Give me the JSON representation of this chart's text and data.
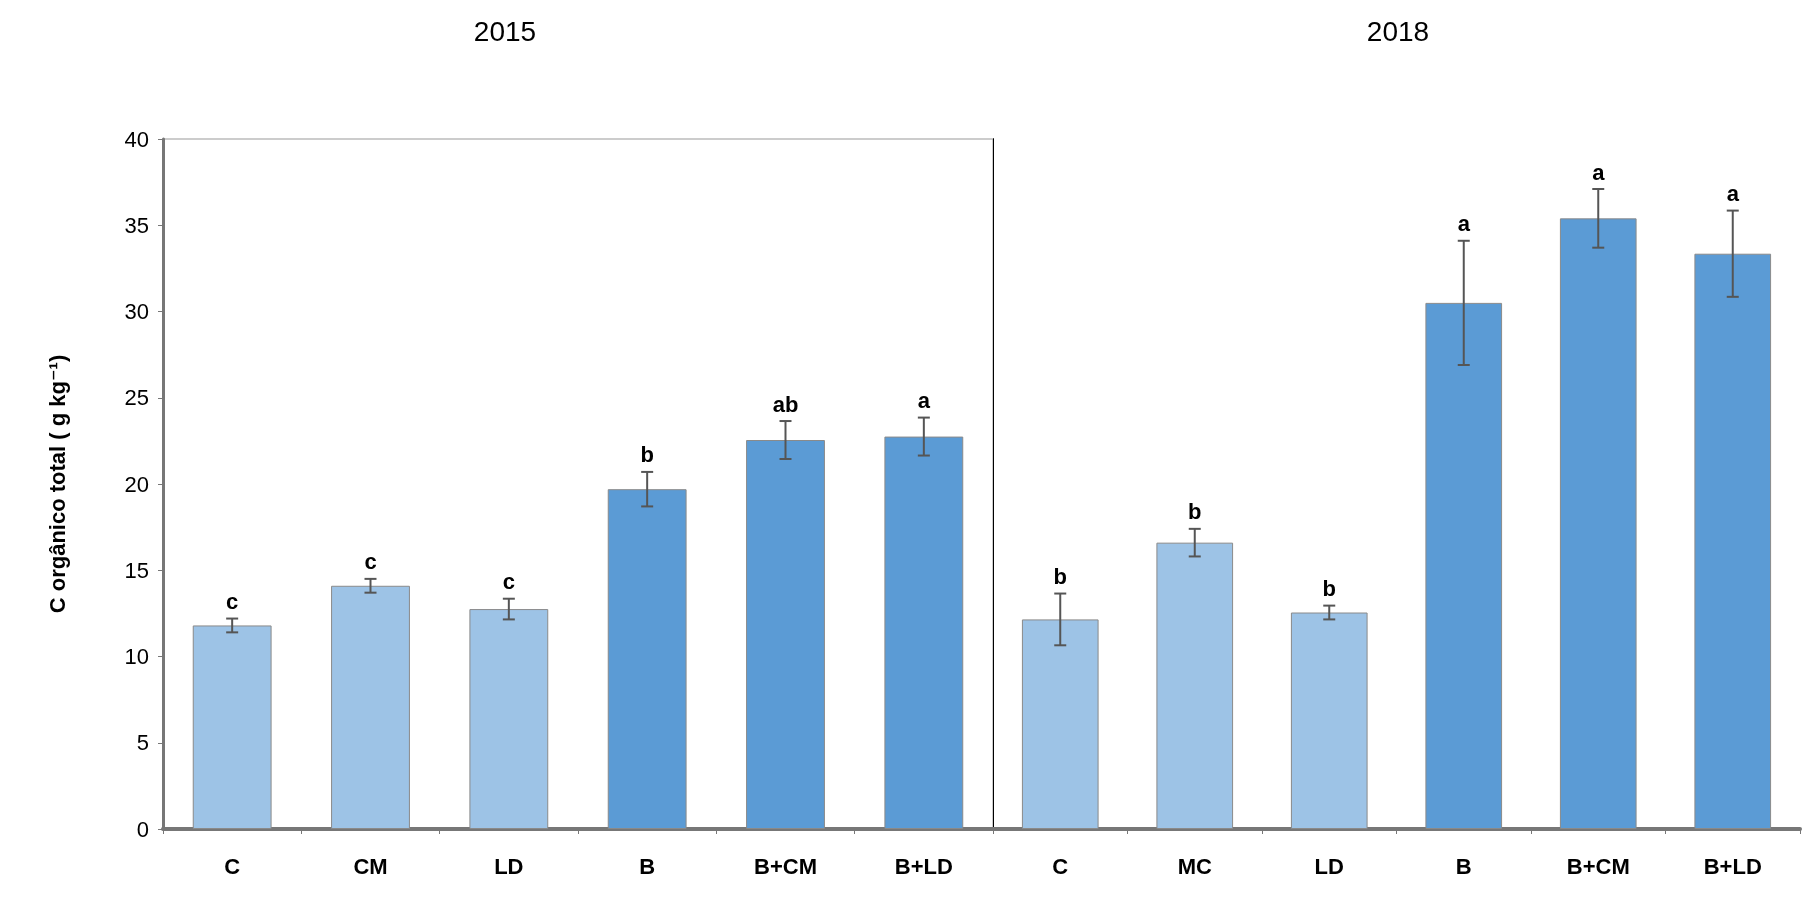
{
  "chart_data": [
    {
      "type": "bar",
      "title": "2015",
      "ylabel": "C orgânico total ( g kg⁻¹)",
      "categories": [
        "C",
        "CM",
        "LD",
        "B",
        "B+CM",
        "B+LD"
      ],
      "values": [
        11.8,
        14.1,
        12.75,
        19.7,
        22.55,
        22.75
      ],
      "colors": [
        "#9dc3e6",
        "#9dc3e6",
        "#9dc3e6",
        "#5b9bd5",
        "#5b9bd5",
        "#5b9bd5"
      ],
      "errors": [
        0.4,
        0.4,
        0.6,
        1.0,
        1.1,
        1.1
      ],
      "ylim": [
        0,
        40
      ],
      "yticks": [
        0,
        5,
        10,
        15,
        20,
        25,
        30,
        35,
        40
      ],
      "grid": false,
      "annotations": [
        {
          "text": "c",
          "x": "C",
          "y": 12.2
        },
        {
          "text": "c",
          "x": "CM",
          "y": 14.5
        },
        {
          "text": "c",
          "x": "LD",
          "y": 13.35
        },
        {
          "text": "b",
          "x": "B",
          "y": 20.7
        },
        {
          "text": "ab",
          "x": "B+CM",
          "y": 23.65
        },
        {
          "text": "a",
          "x": "B+LD",
          "y": 23.85
        }
      ]
    },
    {
      "type": "bar",
      "title": "2018",
      "categories": [
        "C",
        "MC",
        "LD",
        "B",
        "B+CM",
        "B+LD"
      ],
      "values": [
        12.15,
        16.6,
        12.55,
        30.5,
        35.4,
        33.35
      ],
      "colors": [
        "#9dc3e6",
        "#9dc3e6",
        "#9dc3e6",
        "#5b9bd5",
        "#5b9bd5",
        "#5b9bd5"
      ],
      "errors": [
        1.5,
        0.8,
        0.4,
        3.6,
        1.7,
        2.5
      ],
      "ylim": [
        0,
        40
      ],
      "yticks": [
        0,
        5,
        10,
        15,
        20,
        25,
        30,
        35,
        40
      ],
      "grid": false,
      "tick_labels": "x",
      "annotations": [
        {
          "text": "b",
          "x": "C",
          "y": 13.65
        },
        {
          "text": "b",
          "x": "MC",
          "y": 17.4
        },
        {
          "text": "b",
          "x": "LD",
          "y": 12.95
        },
        {
          "text": "a",
          "x": "B",
          "y": 34.1
        },
        {
          "text": "a",
          "x": "B+CM",
          "y": 37.1
        },
        {
          "text": "a",
          "x": "B+LD",
          "y": 35.85
        }
      ]
    }
  ]
}
